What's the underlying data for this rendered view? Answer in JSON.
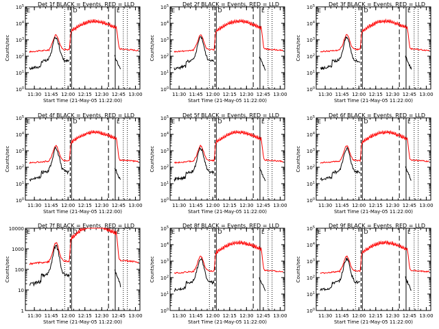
{
  "page": {
    "x_tick_labels": [
      "11:30",
      "11:45",
      "12:00",
      "12:15",
      "12:30",
      "12:45",
      "13:00"
    ],
    "x_axis_label": "Start Time (21-May-05 11:22:00)",
    "y_axis_label": "Counts/sec",
    "marker_labels": [
      "D",
      "E",
      "L"
    ],
    "colors": {
      "events": "#000000",
      "lld": "#ff0000",
      "axis": "#000000"
    }
  },
  "chart_data": [
    {
      "type": "line",
      "title": "Det 1f BLACK = Events, RED = LLD",
      "yscale": "log",
      "ylim": [
        1,
        100000
      ],
      "ytick_labels": [
        "10^0",
        "10^1",
        "10^2",
        "10^3",
        "10^4",
        "10^5"
      ]
    },
    {
      "type": "line",
      "title": "Det 2f BLACK = Events, RED = LLD",
      "yscale": "log",
      "ylim": [
        1,
        100000
      ],
      "ytick_labels": [
        "10^0",
        "10^1",
        "10^2",
        "10^3",
        "10^4",
        "10^5"
      ]
    },
    {
      "type": "line",
      "title": "Det 3f BLACK = Events, RED = LLD",
      "yscale": "log",
      "ylim": [
        1,
        100000
      ],
      "ytick_labels": [
        "10^0",
        "10^1",
        "10^2",
        "10^3",
        "10^4",
        "10^5"
      ]
    },
    {
      "type": "line",
      "title": "Det 4f BLACK = Events, RED = LLD",
      "yscale": "log",
      "ylim": [
        1,
        100000
      ],
      "ytick_labels": [
        "10^0",
        "10^1",
        "10^2",
        "10^3",
        "10^4",
        "10^5"
      ]
    },
    {
      "type": "line",
      "title": "Det 5f BLACK = Events, RED = LLD",
      "yscale": "log",
      "ylim": [
        1,
        100000
      ],
      "ytick_labels": [
        "10^0",
        "10^1",
        "10^2",
        "10^3",
        "10^4",
        "10^5"
      ]
    },
    {
      "type": "line",
      "title": "Det 6f BLACK = Events, RED = LLD",
      "yscale": "log",
      "ylim": [
        1,
        100000
      ],
      "ytick_labels": [
        "10^0",
        "10^1",
        "10^2",
        "10^3",
        "10^4",
        "10^5"
      ]
    },
    {
      "type": "line",
      "title": "Det 7f BLACK = Events, RED = LLD",
      "yscale": "log",
      "ylim": [
        1,
        10000
      ],
      "ytick_labels": [
        "1",
        "10",
        "100",
        "1000",
        "10000"
      ]
    },
    {
      "type": "line",
      "title": "Det 8f BLACK = Events, RED = LLD",
      "yscale": "log",
      "ylim": [
        1,
        100000
      ],
      "ytick_labels": [
        "10^0",
        "10^1",
        "10^2",
        "10^3",
        "10^4",
        "10^5"
      ]
    },
    {
      "type": "line",
      "title": "Det 9f BLACK = Events, RED = LLD",
      "yscale": "log",
      "ylim": [
        1,
        100000
      ],
      "ytick_labels": [
        "10^0",
        "10^1",
        "10^2",
        "10^3",
        "10^4",
        "10^5"
      ]
    }
  ]
}
